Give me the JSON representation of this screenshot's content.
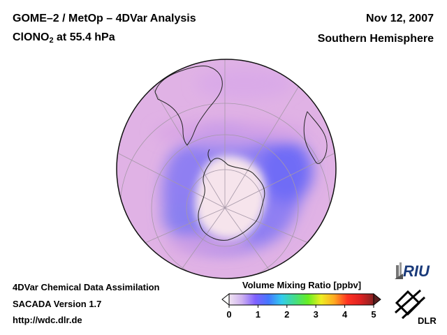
{
  "header": {
    "title_line1": "GOME–2 / MetOp – 4DVar Analysis",
    "title_species_main": "ClONO",
    "title_species_sub": "2",
    "title_species_rest": " at 55.4 hPa",
    "date": "Nov 12, 2007",
    "region": "Southern Hemisphere"
  },
  "footer": {
    "line1": "4DVar Chemical Data Assimilation",
    "line2": "SACADA Version 1.7",
    "line3": "http://wdc.dlr.de"
  },
  "colorbar": {
    "title": "Volume Mixing Ratio [ppbv]",
    "ticks": [
      "0",
      "1",
      "2",
      "3",
      "4",
      "5"
    ],
    "min": 0,
    "max": 5,
    "stops": [
      "#f2e4f2",
      "#cdb0f0",
      "#7f60ff",
      "#4477ff",
      "#33ccee",
      "#44dd88",
      "#66ee22",
      "#eeee22",
      "#ffaa22",
      "#ff3322",
      "#dd2222",
      "#882222"
    ]
  },
  "logos": {
    "riu": "RIU",
    "dlr": "DLR"
  },
  "colors": {
    "background_field": "#e3b3e6",
    "high_center": "#f5e3ec",
    "low_ring": "#8a78f0",
    "coastline": "#222222",
    "grid": "#a89aa8"
  }
}
